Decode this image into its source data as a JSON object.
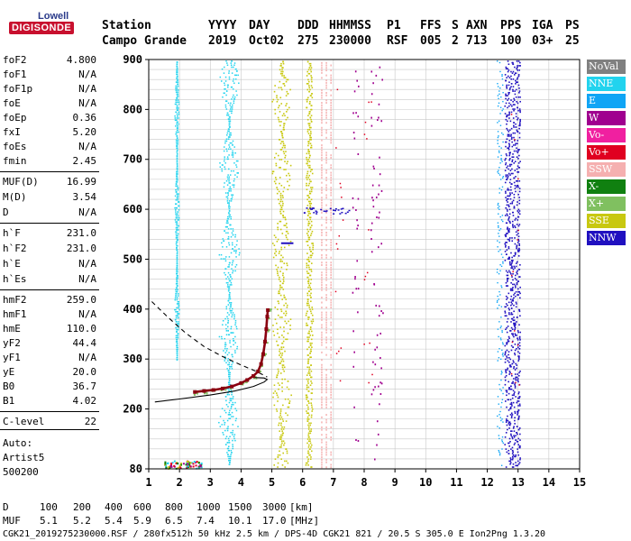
{
  "logo": {
    "line1": "Lowell",
    "line2": "DIGISONDE"
  },
  "header": {
    "labels": [
      "Station",
      "YYYY",
      "DAY",
      "DDD",
      "HHMMSS",
      "P1",
      "FFS",
      "S",
      "AXN",
      "PPS",
      "IGA",
      "PS"
    ],
    "values": [
      "Campo Grande",
      "2019",
      "Oct02",
      "275",
      "230000",
      "RSF",
      "005",
      "2",
      "713",
      "100",
      "03+",
      "25"
    ]
  },
  "side_params": [
    {
      "name": "foF2",
      "value": "4.800"
    },
    {
      "name": "foF1",
      "value": "N/A"
    },
    {
      "name": "foF1p",
      "value": "N/A"
    },
    {
      "name": "foE",
      "value": "N/A"
    },
    {
      "name": "foEp",
      "value": "0.36"
    },
    {
      "name": "fxI",
      "value": "5.20"
    },
    {
      "name": "foEs",
      "value": "N/A"
    },
    {
      "name": "fmin",
      "value": "2.45"
    },
    {
      "name": "MUF(D)",
      "value": "16.99"
    },
    {
      "name": "M(D)",
      "value": "3.54"
    },
    {
      "name": "D",
      "value": "N/A"
    },
    {
      "name": "h`F",
      "value": "231.0"
    },
    {
      "name": "h`F2",
      "value": "231.0"
    },
    {
      "name": "h`E",
      "value": "N/A"
    },
    {
      "name": "h`Es",
      "value": "N/A"
    },
    {
      "name": "hmF2",
      "value": "259.0"
    },
    {
      "name": "hmF1",
      "value": "N/A"
    },
    {
      "name": "hmE",
      "value": "110.0"
    },
    {
      "name": "yF2",
      "value": "44.4"
    },
    {
      "name": "yF1",
      "value": "N/A"
    },
    {
      "name": "yE",
      "value": "20.0"
    },
    {
      "name": "B0",
      "value": "36.7"
    },
    {
      "name": "B1",
      "value": "4.02"
    },
    {
      "name": "C-level",
      "value": "22"
    }
  ],
  "auto": {
    "line1": "Auto:",
    "line2": "Artist5",
    "line3": "500200"
  },
  "legend": [
    {
      "label": "NoVal",
      "color": "#808080"
    },
    {
      "label": "NNE",
      "color": "#22d3ee"
    },
    {
      "label": "E",
      "color": "#10a5f5"
    },
    {
      "label": "W",
      "color": "#a0008f"
    },
    {
      "label": "Vo-",
      "color": "#f020a0"
    },
    {
      "label": "Vo+",
      "color": "#e00020"
    },
    {
      "label": "SSW",
      "color": "#f5b0b0"
    },
    {
      "label": "X-",
      "color": "#108010"
    },
    {
      "label": "X+",
      "color": "#80c060"
    },
    {
      "label": "SSE",
      "color": "#c8c810"
    },
    {
      "label": "NNW",
      "color": "#2010c0"
    }
  ],
  "footer": {
    "d_label": "D",
    "d_values": [
      "100",
      "200",
      "400",
      "600",
      "800",
      "1000",
      "1500",
      "3000"
    ],
    "d_unit": "[km]",
    "muf_label": "MUF",
    "muf_values": [
      "5.1",
      "5.2",
      "5.4",
      "5.9",
      "6.5",
      "7.4",
      "10.1",
      "17.0"
    ],
    "muf_unit": "[MHz]",
    "info": "CGK21_2019275230000.RSF / 280fx512h 50 kHz 2.5 km / DPS-4D CGK21 821 / 20.5 S 305.0 E Ion2Png 1.3.20"
  },
  "chart_data": {
    "type": "scatter",
    "x_ticks": [
      1,
      2,
      3,
      4,
      5,
      6,
      7,
      8,
      9,
      10,
      11,
      12,
      13,
      14,
      15
    ],
    "y_ticks": [
      80,
      200,
      300,
      400,
      500,
      600,
      700,
      800,
      900
    ],
    "xlim": [
      1,
      15
    ],
    "ylim": [
      80,
      900
    ],
    "grid": true,
    "y_grid_step": 20,
    "trace_vo_plus": [
      [
        2.5,
        234
      ],
      [
        2.8,
        236
      ],
      [
        3.1,
        238
      ],
      [
        3.4,
        241
      ],
      [
        3.7,
        245
      ],
      [
        4.0,
        252
      ],
      [
        4.2,
        258
      ],
      [
        4.4,
        266
      ],
      [
        4.55,
        275
      ],
      [
        4.65,
        290
      ],
      [
        4.72,
        310
      ],
      [
        4.78,
        335
      ],
      [
        4.82,
        360
      ],
      [
        4.85,
        385
      ],
      [
        4.87,
        398
      ]
    ],
    "profile_solid": [
      [
        1.2,
        214
      ],
      [
        2.0,
        220
      ],
      [
        3.0,
        228
      ],
      [
        3.8,
        236
      ],
      [
        4.4,
        245
      ],
      [
        4.75,
        254
      ],
      [
        4.85,
        259
      ],
      [
        4.75,
        262
      ],
      [
        4.4,
        263
      ]
    ],
    "profile_dashed": [
      [
        1.1,
        415
      ],
      [
        1.6,
        385
      ],
      [
        2.2,
        352
      ],
      [
        2.8,
        325
      ],
      [
        3.4,
        305
      ],
      [
        4.0,
        288
      ],
      [
        4.5,
        275
      ],
      [
        4.85,
        264
      ]
    ],
    "sse_band": [
      {
        "x": 5.0,
        "y0": 80,
        "y1": 900
      },
      {
        "x": 6.5,
        "y0": 80,
        "y1": 900
      }
    ],
    "ssw_band": [
      {
        "x": 6.6,
        "y0": 80,
        "y1": 900
      },
      {
        "x": 6.9,
        "y0": 80,
        "y1": 900
      }
    ],
    "nnw_column": {
      "x": 12.8,
      "y0": 80,
      "y1": 900
    }
  }
}
